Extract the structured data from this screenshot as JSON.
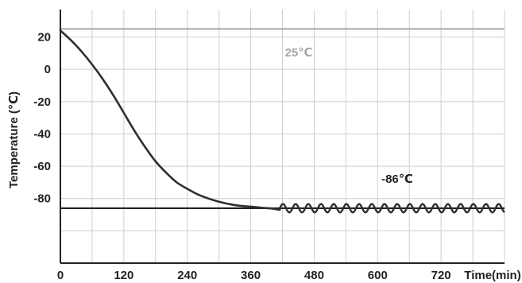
{
  "chart_data": {
    "type": "line",
    "title": "",
    "xlabel": "Time(min)",
    "ylabel": "Temperature (℃)",
    "xlim": [
      0,
      840
    ],
    "ylim": [
      -120,
      37
    ],
    "x_ticks": [
      0,
      120,
      240,
      360,
      480,
      600,
      720
    ],
    "y_ticks": [
      20,
      0,
      -20,
      -40,
      -60,
      -80
    ],
    "grid_y_values": [
      20,
      0,
      -20,
      -40,
      -60,
      -80,
      -100
    ],
    "grid_x_values": [
      0,
      60,
      120,
      180,
      240,
      300,
      360,
      420,
      480,
      540,
      600,
      660,
      720,
      780,
      840
    ],
    "grid": true,
    "reference_lines": [
      {
        "label": "25℃",
        "y": 25,
        "color": "#a6a6a6"
      },
      {
        "label": "-86℃",
        "y": -86,
        "color": "#222222"
      }
    ],
    "series": [
      {
        "color": "#2f2f2f",
        "x": [
          0,
          20,
          40,
          60,
          80,
          100,
          120,
          140,
          160,
          180,
          200,
          220,
          240,
          260,
          280,
          300,
          320,
          340,
          360,
          380,
          400,
          415
        ],
        "y": [
          24,
          18,
          11,
          3,
          -6,
          -16,
          -27,
          -38,
          -48,
          -57,
          -64,
          -70,
          -74,
          -77.5,
          -80,
          -82,
          -83.5,
          -84.5,
          -85,
          -85.7,
          -86.2,
          -87
        ]
      }
    ],
    "oscillation": {
      "x_start": 415,
      "x_end": 840,
      "center": -86,
      "amplitude": 2.6,
      "period": 24
    }
  }
}
